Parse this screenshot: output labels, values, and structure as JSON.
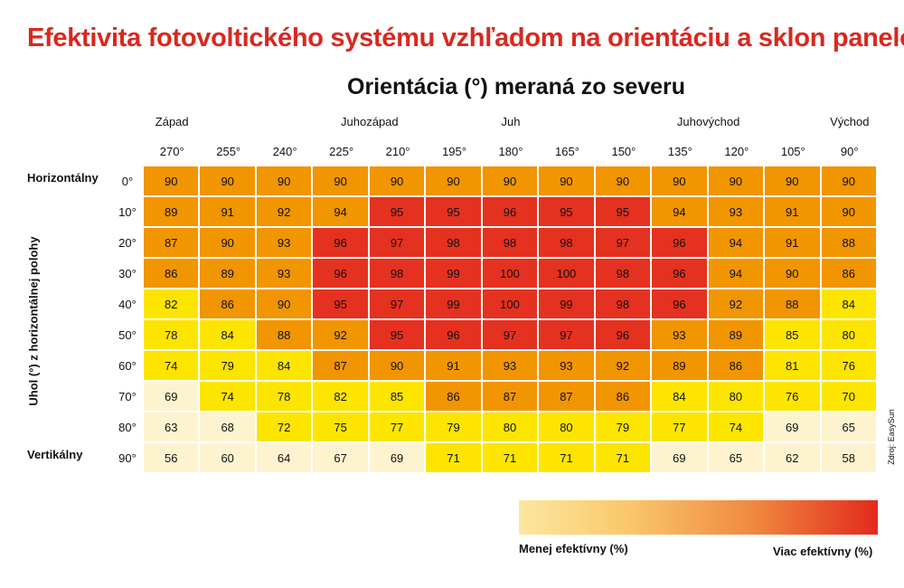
{
  "title": "Efektivita fotovoltického systému vzhľadom na orientáciu a sklon panelov",
  "source": "Zdroj: EasySun",
  "legend": {
    "low_label": "Menej efektívny (%)",
    "high_label": "Viac efektívny (%)",
    "colors": [
      "#fdf4cf",
      "#fde500",
      "#f19500",
      "#e5311f"
    ]
  },
  "chart_data": {
    "type": "heatmap",
    "title": "Orientácia (°) meraná zo severu",
    "xlabel": "Orientácia (°) meraná zo severu",
    "ylabel": "Uhol (°) z horizontálnej polohy",
    "directions": [
      {
        "label": "Západ",
        "column": 0
      },
      {
        "label": "Juhozápad",
        "column": 3.5
      },
      {
        "label": "Juh",
        "column": 6
      },
      {
        "label": "Juhovýchod",
        "column": 9.5
      },
      {
        "label": "Východ",
        "column": 12
      }
    ],
    "columns": [
      "270°",
      "255°",
      "240°",
      "225°",
      "210°",
      "195°",
      "180°",
      "165°",
      "150°",
      "135°",
      "120°",
      "105°",
      "90°"
    ],
    "rows": [
      "0°",
      "10°",
      "20°",
      "30°",
      "40°",
      "50°",
      "60°",
      "70°",
      "80°",
      "90°"
    ],
    "row_names": [
      {
        "row": 0,
        "label": "Horizontálny"
      },
      {
        "row": 9,
        "label": "Vertikálny"
      }
    ],
    "values": [
      [
        90,
        90,
        90,
        90,
        90,
        90,
        90,
        90,
        90,
        90,
        90,
        90,
        90
      ],
      [
        89,
        91,
        92,
        94,
        95,
        95,
        96,
        95,
        95,
        94,
        93,
        91,
        90
      ],
      [
        87,
        90,
        93,
        96,
        97,
        98,
        98,
        98,
        97,
        96,
        94,
        91,
        88
      ],
      [
        86,
        89,
        93,
        96,
        98,
        99,
        100,
        100,
        98,
        96,
        94,
        90,
        86
      ],
      [
        82,
        86,
        90,
        95,
        97,
        99,
        100,
        99,
        98,
        96,
        92,
        88,
        84
      ],
      [
        78,
        84,
        88,
        92,
        95,
        96,
        97,
        97,
        96,
        93,
        89,
        85,
        80
      ],
      [
        74,
        79,
        84,
        87,
        90,
        91,
        93,
        93,
        92,
        89,
        86,
        81,
        76
      ],
      [
        69,
        74,
        78,
        82,
        85,
        86,
        87,
        87,
        86,
        84,
        80,
        76,
        70
      ],
      [
        63,
        68,
        72,
        75,
        77,
        79,
        80,
        80,
        79,
        77,
        74,
        69,
        65
      ],
      [
        56,
        60,
        64,
        67,
        69,
        71,
        71,
        71,
        71,
        69,
        65,
        62,
        58
      ]
    ],
    "color_levels": [
      [
        3,
        3,
        3,
        3,
        3,
        3,
        3,
        3,
        3,
        3,
        3,
        3,
        3
      ],
      [
        3,
        3,
        3,
        3,
        4,
        4,
        4,
        4,
        4,
        3,
        3,
        3,
        3
      ],
      [
        3,
        3,
        3,
        4,
        4,
        4,
        4,
        4,
        4,
        4,
        3,
        3,
        3
      ],
      [
        3,
        3,
        3,
        4,
        4,
        4,
        4,
        4,
        4,
        4,
        3,
        3,
        3
      ],
      [
        2,
        3,
        3,
        4,
        4,
        4,
        4,
        4,
        4,
        4,
        3,
        3,
        2
      ],
      [
        2,
        2,
        3,
        3,
        4,
        4,
        4,
        4,
        4,
        3,
        3,
        2,
        2
      ],
      [
        2,
        2,
        2,
        3,
        3,
        3,
        3,
        3,
        3,
        3,
        3,
        2,
        2
      ],
      [
        1,
        2,
        2,
        2,
        2,
        3,
        3,
        3,
        3,
        2,
        2,
        2,
        2
      ],
      [
        1,
        1,
        2,
        2,
        2,
        2,
        2,
        2,
        2,
        2,
        2,
        1,
        1
      ],
      [
        1,
        1,
        1,
        1,
        1,
        2,
        2,
        2,
        2,
        1,
        1,
        1,
        1
      ]
    ]
  }
}
